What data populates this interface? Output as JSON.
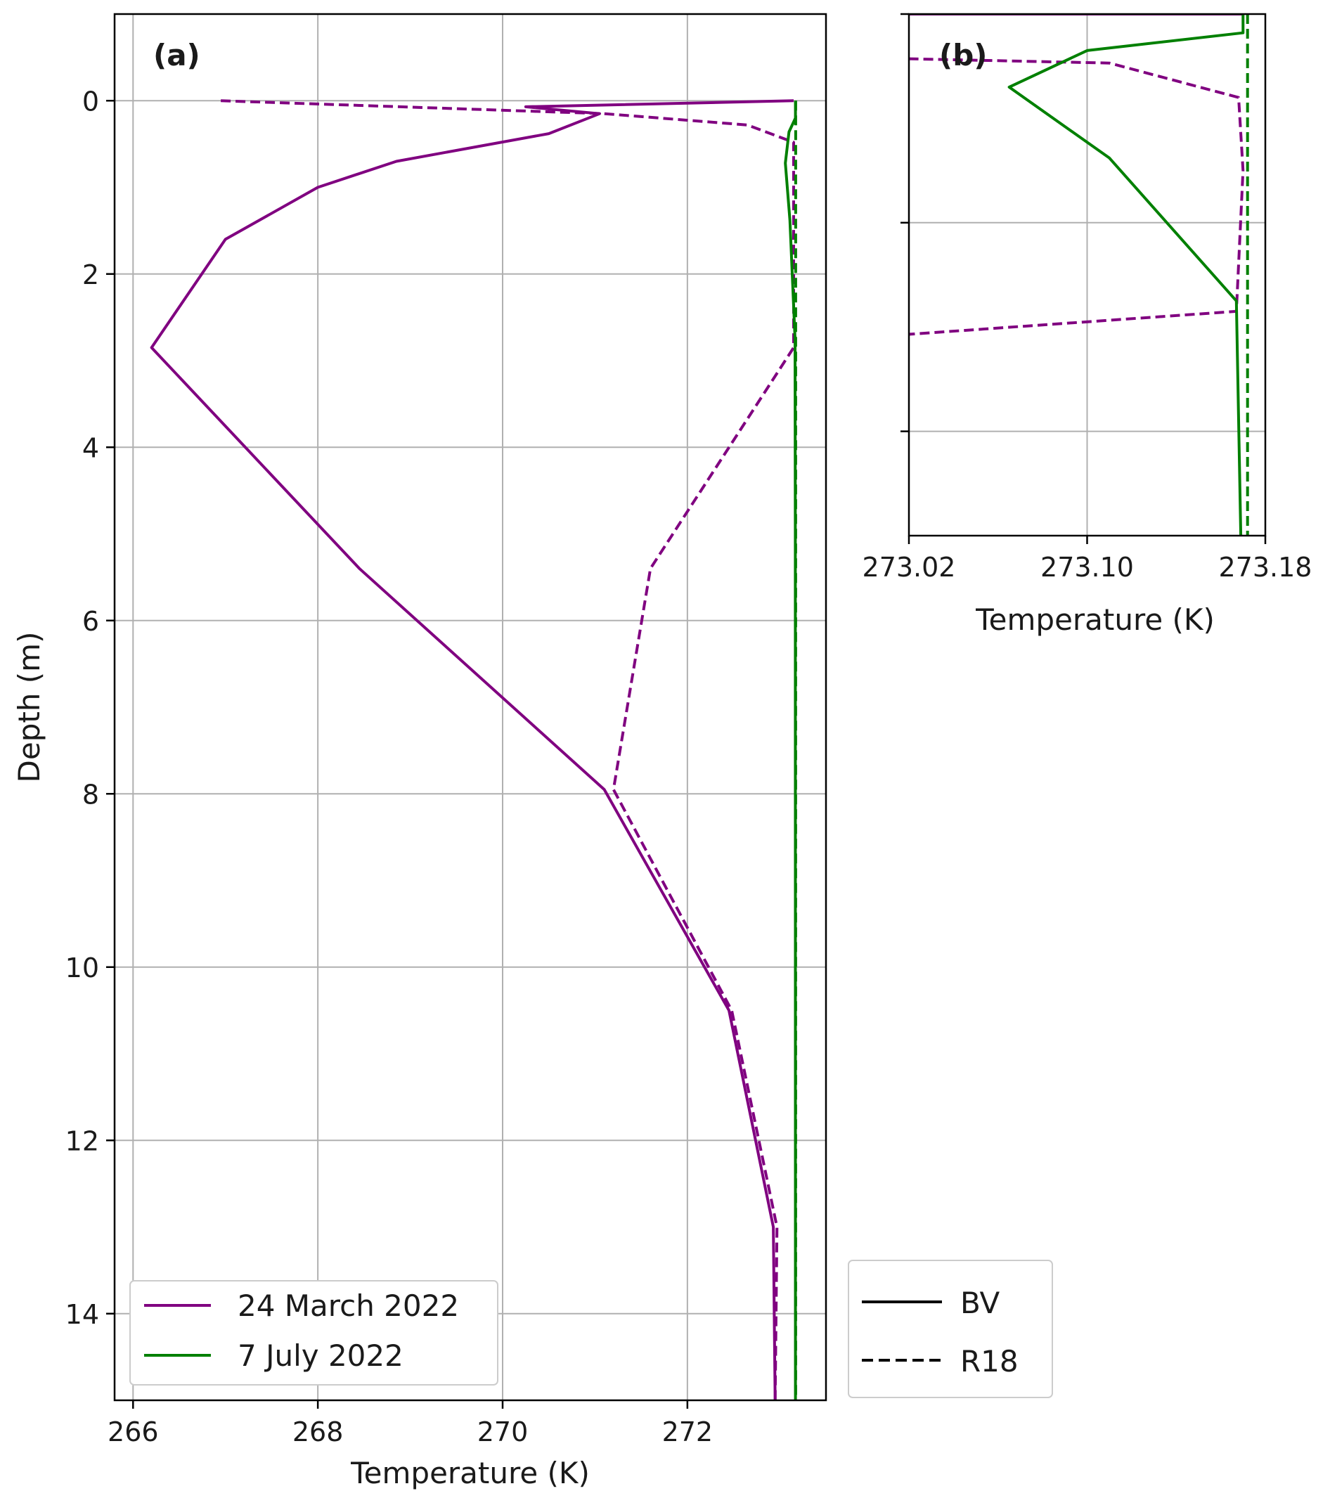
{
  "chart_data": [
    {
      "type": "line",
      "panel_label": "(a)",
      "xlabel": "Temperature (K)",
      "ylabel": "Depth (m)",
      "xlim": [
        265.8,
        273.5
      ],
      "ylim": [
        15,
        -1
      ],
      "xticks": [
        "266",
        "268",
        "270",
        "272"
      ],
      "xtick_values": [
        266,
        268,
        270,
        272
      ],
      "yticks": [
        "0",
        "2",
        "4",
        "6",
        "8",
        "10",
        "12",
        "14"
      ],
      "ytick_values": [
        0,
        2,
        4,
        6,
        8,
        10,
        12,
        14
      ],
      "grid": true,
      "legend": {
        "placement": "lower-left",
        "entries": [
          {
            "label": "24 March 2022",
            "color": "#800080"
          },
          {
            "label": "7 July 2022",
            "color": "#008000"
          }
        ]
      },
      "series": [
        {
          "date": "24 March 2022",
          "model": "BV",
          "color": "#800080",
          "dash": "solid",
          "points": [
            [
              273.15,
              0
            ],
            [
              270.25,
              0.07
            ],
            [
              271.05,
              0.15
            ],
            [
              270.5,
              0.38
            ],
            [
              268.85,
              0.7
            ],
            [
              268.0,
              1.0
            ],
            [
              267.0,
              1.6
            ],
            [
              266.2,
              2.85
            ],
            [
              268.45,
              5.4
            ],
            [
              271.1,
              7.95
            ],
            [
              272.45,
              10.5
            ],
            [
              272.93,
              13.0
            ],
            [
              272.95,
              15.0
            ]
          ]
        },
        {
          "date": "24 March 2022",
          "model": "R18",
          "color": "#800080",
          "dash": "dashed",
          "points": [
            [
              266.95,
              0
            ],
            [
              271.1,
              0.15
            ],
            [
              272.65,
              0.28
            ],
            [
              273.15,
              0.48
            ],
            [
              273.15,
              2.85
            ],
            [
              271.6,
              5.4
            ],
            [
              271.2,
              7.95
            ],
            [
              272.48,
              10.5
            ],
            [
              272.97,
              13.0
            ],
            [
              272.95,
              15.0
            ]
          ]
        },
        {
          "date": "7 July 2022",
          "model": "BV",
          "color": "#008000",
          "dash": "solid",
          "points": [
            [
              273.17,
              0
            ],
            [
              273.17,
              0.2
            ],
            [
              273.1,
              0.36
            ],
            [
              273.06,
              0.72
            ],
            [
              273.11,
              1.38
            ],
            [
              273.165,
              2.75
            ],
            [
              273.168,
              5.0
            ],
            [
              273.17,
              15.0
            ]
          ]
        },
        {
          "date": "7 July 2022",
          "model": "R18",
          "color": "#008000",
          "dash": "dashed",
          "points": [
            [
              273.172,
              0
            ],
            [
              273.172,
              15.0
            ]
          ]
        }
      ]
    },
    {
      "type": "line",
      "panel_label": "(b)",
      "xlabel": "Temperature (K)",
      "xlim": [
        273.02,
        273.18
      ],
      "ylim": [
        5,
        -0.0
      ],
      "xticks": [
        "273.02",
        "273.10",
        "273.18"
      ],
      "xtick_values": [
        273.02,
        273.1,
        273.18
      ],
      "ytick_values": [
        0,
        2,
        4
      ],
      "grid": true,
      "legend": {
        "placement": "below",
        "entries": [
          {
            "label": "BV",
            "dash": "solid"
          },
          {
            "label": "R18",
            "dash": "dashed"
          }
        ]
      },
      "series": [
        {
          "date": "24 March 2022",
          "model": "BV",
          "color": "#800080",
          "dash": "solid",
          "points": [
            [
              273.0,
              0
            ],
            [
              273.17,
              0
            ]
          ]
        },
        {
          "date": "24 March 2022",
          "model": "R18",
          "color": "#800080",
          "dash": "dashed",
          "points": [
            [
              273.0,
              0.42
            ],
            [
              273.11,
              0.47
            ],
            [
              273.168,
              0.8
            ],
            [
              273.17,
              1.5
            ],
            [
              273.167,
              2.85
            ],
            [
              273.0,
              3.1
            ]
          ]
        },
        {
          "date": "7 July 2022",
          "model": "BV",
          "color": "#008000",
          "dash": "solid",
          "points": [
            [
              273.17,
              0
            ],
            [
              273.17,
              0.18
            ],
            [
              273.1,
              0.35
            ],
            [
              273.065,
              0.7
            ],
            [
              273.11,
              1.38
            ],
            [
              273.167,
              2.75
            ],
            [
              273.169,
              5.0
            ]
          ]
        },
        {
          "date": "7 July 2022",
          "model": "R18",
          "color": "#008000",
          "dash": "dashed",
          "points": [
            [
              273.172,
              0
            ],
            [
              273.172,
              5.0
            ]
          ]
        }
      ]
    }
  ]
}
